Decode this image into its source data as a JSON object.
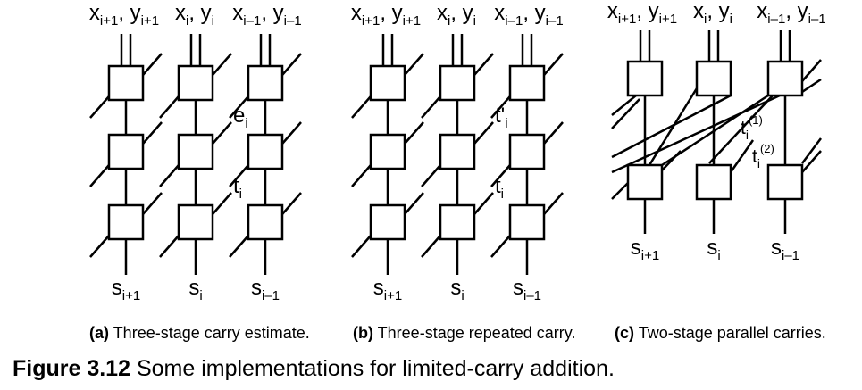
{
  "panels": [
    {
      "id": "a",
      "inputs": [
        "x_{i+1}, y_{i+1}",
        "x_{i}, y_{i}",
        "x_{i-1}, y_{i-1}"
      ],
      "signals": [
        "e_i",
        "t_i"
      ],
      "outputs": [
        "s_{i+1}",
        "s_i",
        "s_{i-1}"
      ],
      "caption_letter": "(a)",
      "caption_text": "Three-stage carry estimate."
    },
    {
      "id": "b",
      "inputs": [
        "x_{i+1}, y_{i+1}",
        "x_{i}, y_{i}",
        "x_{i-1}, y_{i-1}"
      ],
      "signals": [
        "t'_i",
        "t_i"
      ],
      "outputs": [
        "s_{i+1}",
        "s_i",
        "s_{i-1}"
      ],
      "caption_letter": "(b)",
      "caption_text": "Three-stage repeated carry."
    },
    {
      "id": "c",
      "inputs": [
        "x_{i+1}, y_{i+1}",
        "x_{i}, y_{i}",
        "x_{i-1}, y_{i-1}"
      ],
      "signals": [
        "t_i^(1)",
        "t_i^(2)"
      ],
      "outputs": [
        "s_{i+1}",
        "s_i",
        "s_{i-1}"
      ],
      "caption_letter": "(c)",
      "caption_text": "Two-stage parallel carries."
    }
  ],
  "figure": {
    "number": "Figure 3.12",
    "caption": "Some implementations for limited-carry addition."
  }
}
